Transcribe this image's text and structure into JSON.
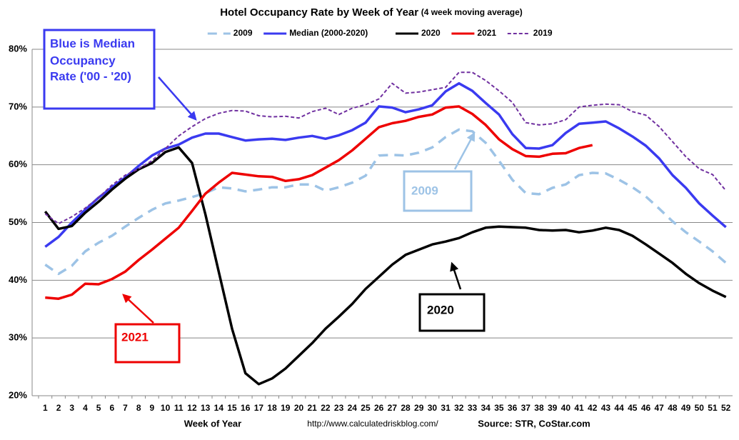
{
  "chart_data": {
    "type": "line",
    "title": "Hotel Occupancy Rate by  Week of Year",
    "subtitle": "(4 week moving average)",
    "x_label": "Week of Year",
    "url": "http://www.calculatedriskblog.com/",
    "source": "Source: STR, CoStar.com",
    "annotations": {
      "median": [
        "Blue is Median",
        "Occupancy",
        "Rate ('00 - '20)"
      ],
      "y2009": "2009",
      "y2020": "2020",
      "y2021": "2021"
    },
    "categories": [
      "1",
      "2",
      "3",
      "4",
      "5",
      "6",
      "7",
      "8",
      "9",
      "10",
      "11",
      "12",
      "13",
      "14",
      "15",
      "16",
      "17",
      "18",
      "19",
      "20",
      "21",
      "22",
      "23",
      "24",
      "25",
      "26",
      "27",
      "28",
      "29",
      "30",
      "31",
      "32",
      "33",
      "34",
      "35",
      "36",
      "37",
      "38",
      "39",
      "40",
      "41",
      "42",
      "43",
      "44",
      "45",
      "46",
      "47",
      "48",
      "49",
      "50",
      "51",
      "52"
    ],
    "ylim": [
      20,
      80
    ],
    "yticks": [
      {
        "value": 20,
        "label": "20%"
      },
      {
        "value": 30,
        "label": "30%"
      },
      {
        "value": 40,
        "label": "40%"
      },
      {
        "value": 50,
        "label": "50%"
      },
      {
        "value": 60,
        "label": "60%"
      },
      {
        "value": 70,
        "label": "70%"
      },
      {
        "value": 80,
        "label": "80%"
      }
    ],
    "grid": true,
    "legend": "top",
    "series": [
      {
        "name": "2009",
        "color": "#9dc3e6",
        "dash": "dashed",
        "values": [
          42.7,
          41.1,
          42.5,
          45.0,
          46.5,
          47.7,
          49.3,
          50.8,
          52.2,
          53.3,
          53.8,
          54.4,
          55.1,
          56.1,
          55.9,
          55.4,
          55.7,
          56.1,
          56.1,
          56.6,
          56.6,
          55.5,
          56.1,
          56.9,
          58.1,
          61.6,
          61.7,
          61.6,
          62.1,
          63.0,
          64.8,
          66.1,
          65.8,
          63.8,
          60.7,
          57.4,
          55.1,
          54.9,
          56.0,
          56.6,
          58.2,
          58.6,
          58.5,
          57.4,
          56.1,
          54.5,
          52.4,
          50.2,
          48.3,
          46.7,
          45.0,
          43.0
        ]
      },
      {
        "name": "Median (2000-2020)",
        "color": "#3a3af0",
        "dash": "solid",
        "values": [
          45.8,
          47.5,
          50.0,
          52.2,
          54.3,
          56.1,
          57.8,
          59.8,
          61.6,
          62.8,
          63.5,
          64.7,
          65.4,
          65.4,
          64.8,
          64.2,
          64.4,
          64.5,
          64.3,
          64.7,
          65.0,
          64.5,
          65.1,
          66.0,
          67.3,
          70.1,
          69.9,
          69.1,
          69.6,
          70.3,
          72.7,
          74.1,
          72.8,
          70.7,
          68.7,
          65.3,
          62.9,
          62.8,
          63.4,
          65.5,
          67.1,
          67.3,
          67.5,
          66.3,
          64.9,
          63.3,
          61.1,
          58.2,
          56.0,
          53.3,
          51.2,
          49.2
        ]
      },
      {
        "name": "2020",
        "color": "#000000",
        "dash": "solid",
        "values": [
          51.9,
          48.9,
          49.4,
          51.7,
          53.6,
          55.7,
          57.6,
          59.2,
          60.3,
          62.2,
          63.0,
          60.3,
          51.4,
          41.5,
          31.6,
          23.9,
          22.0,
          23.0,
          24.7,
          26.9,
          29.1,
          31.6,
          33.7,
          35.9,
          38.5,
          40.6,
          42.7,
          44.4,
          45.3,
          46.2,
          46.7,
          47.3,
          48.3,
          49.1,
          49.3,
          49.2,
          49.1,
          48.7,
          48.6,
          48.7,
          48.3,
          48.6,
          49.1,
          48.7,
          47.7,
          46.2,
          44.6,
          43.0,
          41.1,
          39.5,
          38.2,
          37.1
        ]
      },
      {
        "name": "2021",
        "color": "#ee0000",
        "dash": "solid",
        "values": [
          37.0,
          36.8,
          37.5,
          39.4,
          39.3,
          40.2,
          41.5,
          43.5,
          45.3,
          47.2,
          49.1,
          52.0,
          55.0,
          56.9,
          58.6,
          58.3,
          58.0,
          57.9,
          57.2,
          57.5,
          58.2,
          59.5,
          60.8,
          62.5,
          64.5,
          66.5,
          67.2,
          67.6,
          68.3,
          68.7,
          69.9,
          70.1,
          68.8,
          66.9,
          64.4,
          62.7,
          61.5,
          61.4,
          61.9,
          62.0,
          62.9,
          63.4,
          null,
          null,
          null,
          null,
          null,
          null,
          null,
          null,
          null,
          null
        ]
      },
      {
        "name": "2019",
        "color": "#7030a0",
        "dash": "dotted",
        "values": [
          51.5,
          49.8,
          51.0,
          52.5,
          54.3,
          56.5,
          58.2,
          59.3,
          60.7,
          62.8,
          65.0,
          66.6,
          68.0,
          68.9,
          69.4,
          69.3,
          68.5,
          68.3,
          68.4,
          68.1,
          69.2,
          69.8,
          68.7,
          69.8,
          70.4,
          71.4,
          74.1,
          72.4,
          72.6,
          73.0,
          73.4,
          76.0,
          76.0,
          74.6,
          72.8,
          70.8,
          67.3,
          66.9,
          67.1,
          67.8,
          70.0,
          70.3,
          70.5,
          70.4,
          69.2,
          68.6,
          66.6,
          64.0,
          61.4,
          59.3,
          58.3,
          55.5
        ]
      }
    ]
  }
}
